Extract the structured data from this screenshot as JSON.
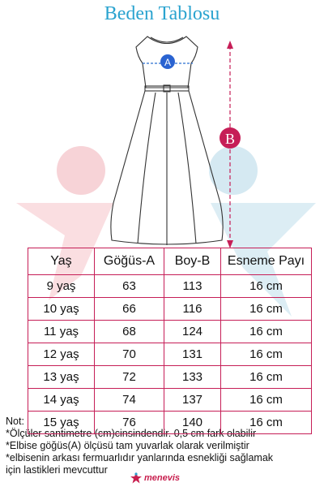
{
  "title": "Beden Tablosu",
  "markers": {
    "a": "A",
    "b": "B"
  },
  "colors": {
    "title": "#2aa3cf",
    "accent": "#c61e57",
    "star_red": "#f5c7cc",
    "star_blue": "#cbe3ee"
  },
  "table": {
    "headers": [
      "Yaş",
      "Göğüs-A",
      "Boy-B",
      "Esneme Payı"
    ],
    "rows": [
      [
        "9 yaş",
        "63",
        "113",
        "16 cm"
      ],
      [
        "10 yaş",
        "66",
        "116",
        "16 cm"
      ],
      [
        "11 yaş",
        "68",
        "124",
        "16 cm"
      ],
      [
        "12 yaş",
        "70",
        "131",
        "16 cm"
      ],
      [
        "13 yaş",
        "72",
        "133",
        "16 cm"
      ],
      [
        "14 yaş",
        "74",
        "137",
        "16 cm"
      ],
      [
        "15 yaş",
        "76",
        "140",
        "16 cm"
      ]
    ]
  },
  "notes": {
    "heading": "Not:",
    "lines": [
      "*Ölçüler santimetre (cm)cinsindendir. 0,5 cm fark olabilir",
      "*Elbise göğüs(A) ölçüsü tam yuvarlak olarak verilmiştir",
      "*elbisenin arkası fermuarlıdır yanlarında esnekliği sağlamak",
      "için lastikleri mevcuttur"
    ]
  },
  "logo": {
    "text": "menevis",
    "icon": "star-person-icon"
  }
}
